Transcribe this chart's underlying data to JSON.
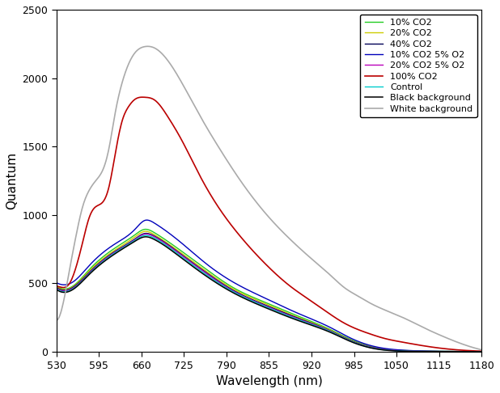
{
  "title": "",
  "xlabel": "Wavelength (nm)",
  "ylabel": "Quantum",
  "xlim": [
    530,
    1180
  ],
  "ylim": [
    0,
    2500
  ],
  "xticks": [
    530,
    595,
    660,
    725,
    790,
    855,
    920,
    985,
    1050,
    1115,
    1180
  ],
  "yticks": [
    0,
    500,
    1000,
    1500,
    2000,
    2500
  ],
  "background_color": "#ffffff",
  "series": [
    {
      "label": "10% CO2",
      "color": "#22cc22",
      "linewidth": 1.0,
      "pts": [
        [
          530,
          480
        ],
        [
          540,
          460
        ],
        [
          555,
          480
        ],
        [
          580,
          600
        ],
        [
          620,
          760
        ],
        [
          650,
          855
        ],
        [
          665,
          895
        ],
        [
          680,
          870
        ],
        [
          720,
          740
        ],
        [
          760,
          600
        ],
        [
          800,
          470
        ],
        [
          850,
          360
        ],
        [
          900,
          260
        ],
        [
          950,
          160
        ],
        [
          980,
          90
        ],
        [
          1020,
          30
        ],
        [
          1060,
          10
        ],
        [
          1100,
          5
        ],
        [
          1150,
          3
        ],
        [
          1180,
          2
        ]
      ]
    },
    {
      "label": "20% CO2",
      "color": "#cccc00",
      "linewidth": 1.0,
      "pts": [
        [
          530,
          475
        ],
        [
          540,
          455
        ],
        [
          555,
          475
        ],
        [
          580,
          590
        ],
        [
          620,
          745
        ],
        [
          650,
          840
        ],
        [
          665,
          880
        ],
        [
          680,
          855
        ],
        [
          720,
          725
        ],
        [
          760,
          585
        ],
        [
          800,
          460
        ],
        [
          850,
          350
        ],
        [
          900,
          250
        ],
        [
          950,
          155
        ],
        [
          980,
          85
        ],
        [
          1020,
          28
        ],
        [
          1060,
          8
        ],
        [
          1100,
          4
        ],
        [
          1150,
          2
        ],
        [
          1180,
          2
        ]
      ]
    },
    {
      "label": "40% CO2",
      "color": "#000055",
      "linewidth": 1.0,
      "pts": [
        [
          530,
          470
        ],
        [
          540,
          450
        ],
        [
          555,
          470
        ],
        [
          580,
          580
        ],
        [
          620,
          735
        ],
        [
          650,
          825
        ],
        [
          665,
          865
        ],
        [
          680,
          845
        ],
        [
          720,
          715
        ],
        [
          760,
          575
        ],
        [
          800,
          450
        ],
        [
          850,
          340
        ],
        [
          900,
          245
        ],
        [
          950,
          150
        ],
        [
          980,
          82
        ],
        [
          1020,
          25
        ],
        [
          1060,
          7
        ],
        [
          1100,
          3
        ],
        [
          1150,
          2
        ],
        [
          1180,
          1
        ]
      ]
    },
    {
      "label": "10% CO2 5% O2",
      "color": "#0000bb",
      "linewidth": 1.0,
      "pts": [
        [
          530,
          505
        ],
        [
          540,
          490
        ],
        [
          555,
          510
        ],
        [
          580,
          630
        ],
        [
          620,
          790
        ],
        [
          650,
          895
        ],
        [
          665,
          960
        ],
        [
          680,
          940
        ],
        [
          720,
          800
        ],
        [
          760,
          640
        ],
        [
          800,
          510
        ],
        [
          850,
          390
        ],
        [
          900,
          280
        ],
        [
          950,
          175
        ],
        [
          980,
          100
        ],
        [
          1020,
          35
        ],
        [
          1060,
          12
        ],
        [
          1100,
          5
        ],
        [
          1150,
          3
        ],
        [
          1180,
          2
        ]
      ]
    },
    {
      "label": "20% CO2 5% O2",
      "color": "#bb00bb",
      "linewidth": 1.0,
      "pts": [
        [
          530,
          465
        ],
        [
          540,
          445
        ],
        [
          555,
          465
        ],
        [
          580,
          575
        ],
        [
          620,
          730
        ],
        [
          650,
          820
        ],
        [
          665,
          860
        ],
        [
          680,
          840
        ],
        [
          720,
          710
        ],
        [
          760,
          570
        ],
        [
          800,
          445
        ],
        [
          850,
          335
        ],
        [
          900,
          240
        ],
        [
          950,
          148
        ],
        [
          980,
          80
        ],
        [
          1020,
          24
        ],
        [
          1060,
          7
        ],
        [
          1100,
          3
        ],
        [
          1150,
          2
        ],
        [
          1180,
          1
        ]
      ]
    },
    {
      "label": "100% CO2",
      "color": "#bb0000",
      "linewidth": 1.2,
      "pts": [
        [
          530,
          480
        ],
        [
          540,
          470
        ],
        [
          550,
          500
        ],
        [
          560,
          620
        ],
        [
          570,
          800
        ],
        [
          580,
          980
        ],
        [
          590,
          1060
        ],
        [
          600,
          1090
        ],
        [
          610,
          1200
        ],
        [
          620,
          1450
        ],
        [
          630,
          1680
        ],
        [
          640,
          1790
        ],
        [
          650,
          1845
        ],
        [
          665,
          1860
        ],
        [
          680,
          1840
        ],
        [
          700,
          1720
        ],
        [
          720,
          1560
        ],
        [
          750,
          1280
        ],
        [
          780,
          1040
        ],
        [
          810,
          850
        ],
        [
          850,
          640
        ],
        [
          890,
          470
        ],
        [
          920,
          370
        ],
        [
          950,
          270
        ],
        [
          970,
          210
        ],
        [
          990,
          165
        ],
        [
          1010,
          130
        ],
        [
          1030,
          100
        ],
        [
          1060,
          70
        ],
        [
          1090,
          45
        ],
        [
          1120,
          25
        ],
        [
          1150,
          12
        ],
        [
          1180,
          5
        ]
      ]
    },
    {
      "label": "Control",
      "color": "#00cccc",
      "linewidth": 1.0,
      "pts": [
        [
          530,
          460
        ],
        [
          540,
          440
        ],
        [
          555,
          460
        ],
        [
          580,
          570
        ],
        [
          620,
          725
        ],
        [
          650,
          815
        ],
        [
          665,
          850
        ],
        [
          680,
          830
        ],
        [
          720,
          700
        ],
        [
          760,
          560
        ],
        [
          800,
          440
        ],
        [
          850,
          330
        ],
        [
          900,
          235
        ],
        [
          950,
          145
        ],
        [
          980,
          78
        ],
        [
          1020,
          22
        ],
        [
          1060,
          6
        ],
        [
          1100,
          3
        ],
        [
          1150,
          2
        ],
        [
          1180,
          1
        ]
      ]
    },
    {
      "label": "Black background",
      "color": "#000000",
      "linewidth": 1.1,
      "pts": [
        [
          530,
          455
        ],
        [
          540,
          435
        ],
        [
          555,
          455
        ],
        [
          580,
          565
        ],
        [
          620,
          718
        ],
        [
          650,
          808
        ],
        [
          665,
          840
        ],
        [
          680,
          820
        ],
        [
          720,
          690
        ],
        [
          760,
          550
        ],
        [
          800,
          432
        ],
        [
          850,
          322
        ],
        [
          900,
          228
        ],
        [
          950,
          140
        ],
        [
          980,
          75
        ],
        [
          1020,
          20
        ],
        [
          1060,
          5
        ],
        [
          1100,
          2
        ],
        [
          1150,
          1
        ],
        [
          1180,
          1
        ]
      ]
    },
    {
      "label": "White background",
      "color": "#aaaaaa",
      "linewidth": 1.2,
      "pts": [
        [
          530,
          230
        ],
        [
          540,
          350
        ],
        [
          550,
          600
        ],
        [
          560,
          850
        ],
        [
          570,
          1060
        ],
        [
          580,
          1180
        ],
        [
          590,
          1250
        ],
        [
          600,
          1320
        ],
        [
          610,
          1480
        ],
        [
          620,
          1750
        ],
        [
          630,
          1960
        ],
        [
          640,
          2100
        ],
        [
          650,
          2185
        ],
        [
          665,
          2230
        ],
        [
          680,
          2220
        ],
        [
          700,
          2130
        ],
        [
          720,
          1980
        ],
        [
          750,
          1720
        ],
        [
          780,
          1480
        ],
        [
          810,
          1260
        ],
        [
          850,
          1010
        ],
        [
          890,
          810
        ],
        [
          920,
          680
        ],
        [
          950,
          555
        ],
        [
          970,
          470
        ],
        [
          990,
          410
        ],
        [
          1010,
          355
        ],
        [
          1030,
          310
        ],
        [
          1060,
          250
        ],
        [
          1090,
          180
        ],
        [
          1120,
          115
        ],
        [
          1150,
          58
        ],
        [
          1180,
          15
        ]
      ]
    }
  ]
}
